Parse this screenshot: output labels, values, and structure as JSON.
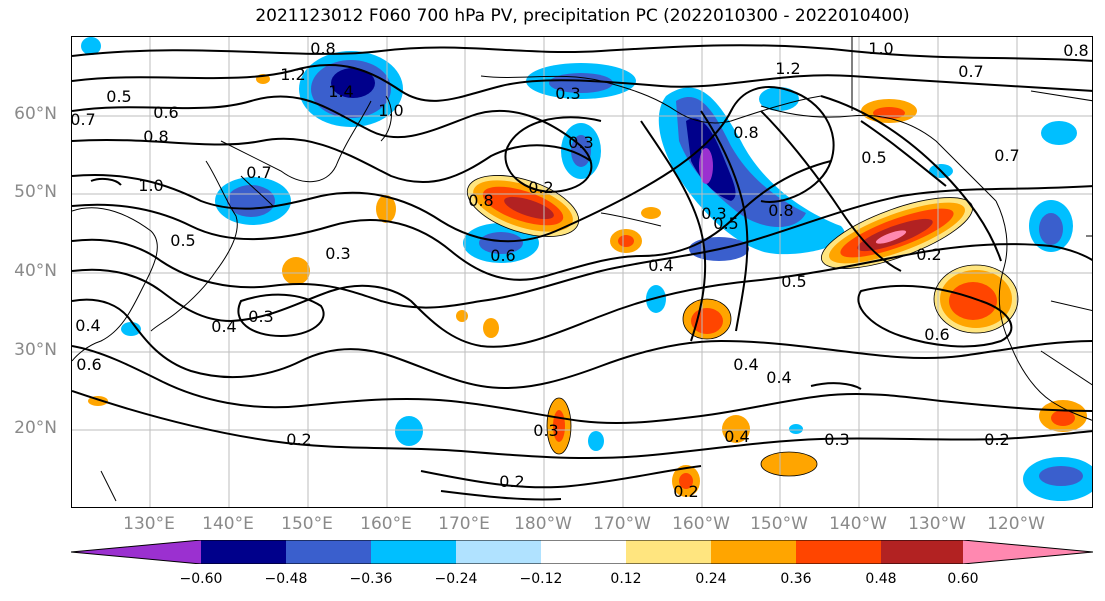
{
  "title": "2021123012 F060 700 hPa PV, precipitation PC (2022010300 - 2022010400)",
  "lat_labels": [
    "60°N",
    "50°N",
    "40°N",
    "30°N",
    "20°N"
  ],
  "lon_labels": [
    "130°E",
    "140°E",
    "150°E",
    "160°E",
    "170°E",
    "180°W",
    "170°W",
    "160°W",
    "150°W",
    "140°W",
    "130°W",
    "120°W"
  ],
  "colorbar": {
    "ticks": [
      "−0.60",
      "−0.48",
      "−0.36",
      "−0.24",
      "−0.12",
      "0.12",
      "0.24",
      "0.36",
      "0.48",
      "0.60"
    ],
    "colors": [
      "#9b30d0",
      "#00008b",
      "#3a5fcd",
      "#00bfff",
      "#b0e2ff",
      "#ffffff",
      "#ffe57f",
      "#ffa500",
      "#ff4500",
      "#b22222",
      "#ff88b0"
    ]
  },
  "contour_labels": [
    {
      "text": "0.8"
    },
    {
      "text": "1.2"
    },
    {
      "text": "0.5"
    },
    {
      "text": "0.7"
    },
    {
      "text": "0.6"
    },
    {
      "text": "0.8"
    },
    {
      "text": "1.0"
    },
    {
      "text": "1.4"
    },
    {
      "text": "1.0"
    },
    {
      "text": "0.7"
    },
    {
      "text": "0.5"
    },
    {
      "text": "0.3"
    },
    {
      "text": "0.3"
    },
    {
      "text": "0.4"
    },
    {
      "text": "0.4"
    },
    {
      "text": "0.6"
    },
    {
      "text": "0.2"
    },
    {
      "text": "0.8"
    },
    {
      "text": "0.6"
    },
    {
      "text": "0.4"
    },
    {
      "text": "0.3"
    },
    {
      "text": "0.3"
    },
    {
      "text": "0.2"
    },
    {
      "text": "0.5"
    },
    {
      "text": "0.2"
    },
    {
      "text": "1.2"
    },
    {
      "text": "0.8"
    },
    {
      "text": "0.3"
    },
    {
      "text": "0.8"
    },
    {
      "text": "0.4"
    },
    {
      "text": "0.5"
    },
    {
      "text": "0.2"
    },
    {
      "text": "0.6"
    },
    {
      "text": "0.4"
    },
    {
      "text": "0.4"
    },
    {
      "text": "0.3"
    },
    {
      "text": "0.2"
    },
    {
      "text": "0.2"
    },
    {
      "text": "1.0"
    },
    {
      "text": "0.7"
    },
    {
      "text": "0.5"
    },
    {
      "text": "0.7"
    },
    {
      "text": "0.8"
    },
    {
      "text": "0.3"
    }
  ]
}
